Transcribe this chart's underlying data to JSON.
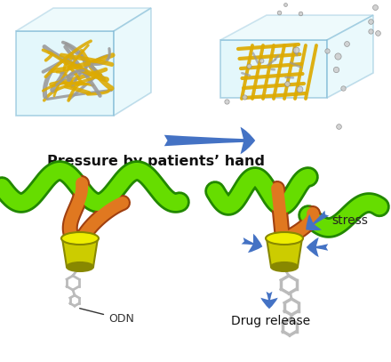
{
  "pressure_text": "Pressure by patients’ hand",
  "stress_text": "stress",
  "odn_text": "ODN",
  "drug_release_text": "Drug release",
  "bg_color": "#ffffff",
  "pressure_fontsize": 11.5,
  "pressure_fontweight": "bold",
  "annotation_fontsize": 9,
  "drug_release_fontsize": 10,
  "arrow_color": "#4472c4",
  "box_color": "#c8f0f8",
  "green_color": "#66dd00",
  "dark_green": "#228800",
  "orange_color": "#e07820",
  "dark_orange": "#a04010",
  "yellow_color": "#cccc00",
  "yellow_light": "#eeee00",
  "yellow_dark": "#888800",
  "gray_mol": "#aaaaaa",
  "gray_dark": "#777777",
  "network_yellow": "#ddaa00",
  "network_gray": "#999999",
  "box_edge": "#66aacc"
}
